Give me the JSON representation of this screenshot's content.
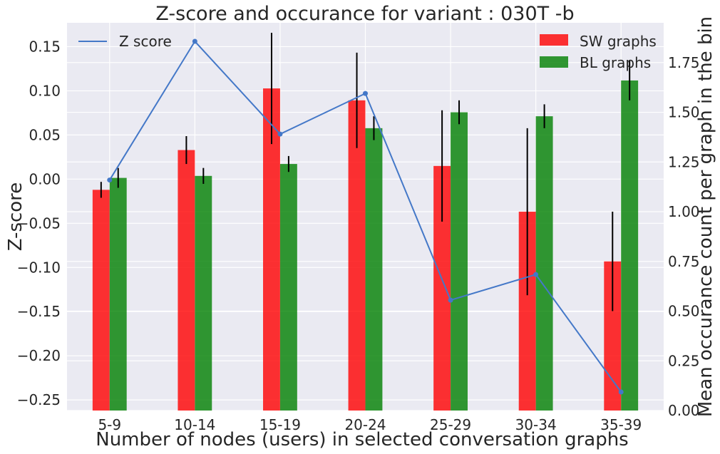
{
  "chart_data": {
    "type": "bar",
    "title": "Z-score and occurance for variant : 030T -b",
    "xlabel": "Number of nodes (users) in selected conversation graphs",
    "ylabel_left": "Z-score",
    "ylabel_right": "Mean occurance count per graph in the bin",
    "categories": [
      "5-9",
      "10-14",
      "15-19",
      "20-24",
      "25-29",
      "30-34",
      "35-39"
    ],
    "left_axis": {
      "ylim": [
        -0.262,
        0.177
      ],
      "ticks": [
        -0.25,
        -0.2,
        -0.15,
        -0.1,
        -0.05,
        0.0,
        0.05,
        0.1,
        0.15
      ],
      "tick_labels": [
        "−0.25",
        "−0.20",
        "−0.15",
        "−0.10",
        "−0.05",
        "0.00",
        "0.05",
        "0.10",
        "0.15"
      ]
    },
    "right_axis": {
      "ylim": [
        0.0,
        1.95
      ],
      "ticks": [
        0.0,
        0.25,
        0.5,
        0.75,
        1.0,
        1.25,
        1.5,
        1.75
      ],
      "tick_labels": [
        "0.00",
        "0.25",
        "0.50",
        "0.75",
        "1.00",
        "1.25",
        "1.50",
        "1.75"
      ]
    },
    "series": [
      {
        "name": "SW graphs",
        "axis": "right",
        "kind": "bar",
        "color": "#ff0000",
        "values": [
          1.11,
          1.31,
          1.62,
          1.56,
          1.23,
          1.0,
          0.75
        ],
        "errors": [
          0.04,
          0.07,
          0.28,
          0.24,
          0.28,
          0.42,
          0.25
        ]
      },
      {
        "name": "BL graphs",
        "axis": "right",
        "kind": "bar",
        "color": "#008000",
        "values": [
          1.17,
          1.18,
          1.24,
          1.42,
          1.5,
          1.48,
          1.66
        ],
        "errors": [
          0.05,
          0.04,
          0.04,
          0.06,
          0.06,
          0.06,
          0.1
        ]
      },
      {
        "name": "Z score",
        "axis": "left",
        "kind": "line",
        "color": "#4478c8",
        "values": [
          -0.001,
          0.156,
          0.051,
          0.097,
          -0.137,
          -0.108,
          -0.241
        ]
      }
    ],
    "legend_left": "top-left",
    "legend_right": "top-right",
    "grid": true,
    "background": "#eaeaf2"
  }
}
